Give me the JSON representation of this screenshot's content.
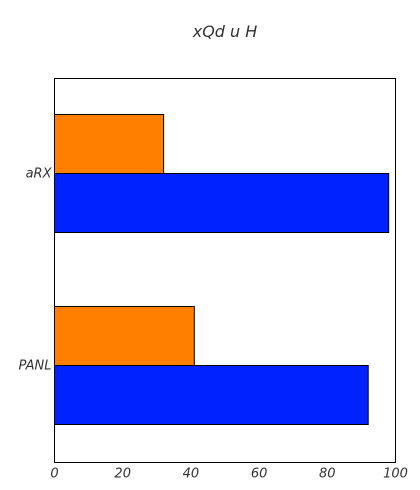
{
  "chart_data": {
    "type": "bar",
    "orientation": "horizontal",
    "title": "xQd u H",
    "categories": [
      "aRX",
      "PANL"
    ],
    "series": [
      {
        "color": "#ff7f00",
        "values": [
          32,
          41
        ]
      },
      {
        "color": "#0022ff",
        "values": [
          98,
          92
        ]
      }
    ],
    "xlim": [
      0,
      100
    ],
    "xticks": [
      "0",
      "20",
      "40",
      "60",
      "80",
      "100"
    ],
    "grid": false
  }
}
